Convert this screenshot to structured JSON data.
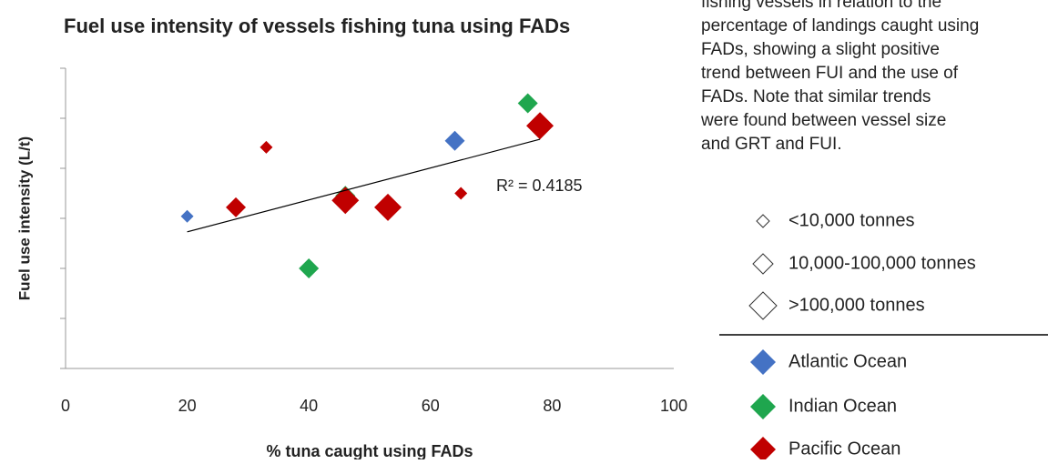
{
  "chart_data": {
    "type": "scatter",
    "title": "Fuel use intensity of vessels fishing tuna using FADs",
    "x_label": "% tuna caught using FADs",
    "y_label": "Fuel use intensity (L/t)",
    "xlim": [
      0,
      100
    ],
    "xticks": [
      0,
      20,
      40,
      60,
      80,
      100
    ],
    "ylim": [
      0,
      6
    ],
    "yticks": [
      0,
      1,
      2,
      3,
      4,
      5,
      6
    ],
    "ytick_labels": false,
    "size_legend": [
      "<10,000 tonnes",
      "10,000-100,000 tonnes",
      ">100,000 tonnes"
    ],
    "series": [
      {
        "name": "Atlantic Ocean",
        "color": "#4472c4",
        "x": [
          20,
          64
        ],
        "values": [
          3.04,
          4.55
        ],
        "size_class": [
          0,
          1
        ]
      },
      {
        "name": "Indian Ocean",
        "color": "#1fa64e",
        "x": [
          40,
          76,
          46
        ],
        "values": [
          2.0,
          5.3,
          3.45
        ],
        "size_class": [
          1,
          1,
          1
        ]
      },
      {
        "name": "Pacific Ocean",
        "color": "#c00000",
        "x": [
          33,
          28,
          46,
          53,
          65,
          78
        ],
        "values": [
          4.42,
          3.22,
          3.36,
          3.22,
          3.5,
          4.85
        ],
        "size_class": [
          0,
          1,
          2,
          2,
          0,
          2
        ]
      }
    ],
    "trendline": {
      "x": [
        20,
        78
      ],
      "values": [
        2.73,
        4.58
      ],
      "color": "#000000"
    },
    "annotation": "R² = 0.4185"
  },
  "body_text": [
    "fishing vessels in relation to the",
    "percentage of landings caught using",
    "FADs, showing a slight positive",
    "trend between FUI and the use of",
    "FADs.   Note that similar trends",
    "were found between vessel size",
    "and GRT and FUI."
  ]
}
